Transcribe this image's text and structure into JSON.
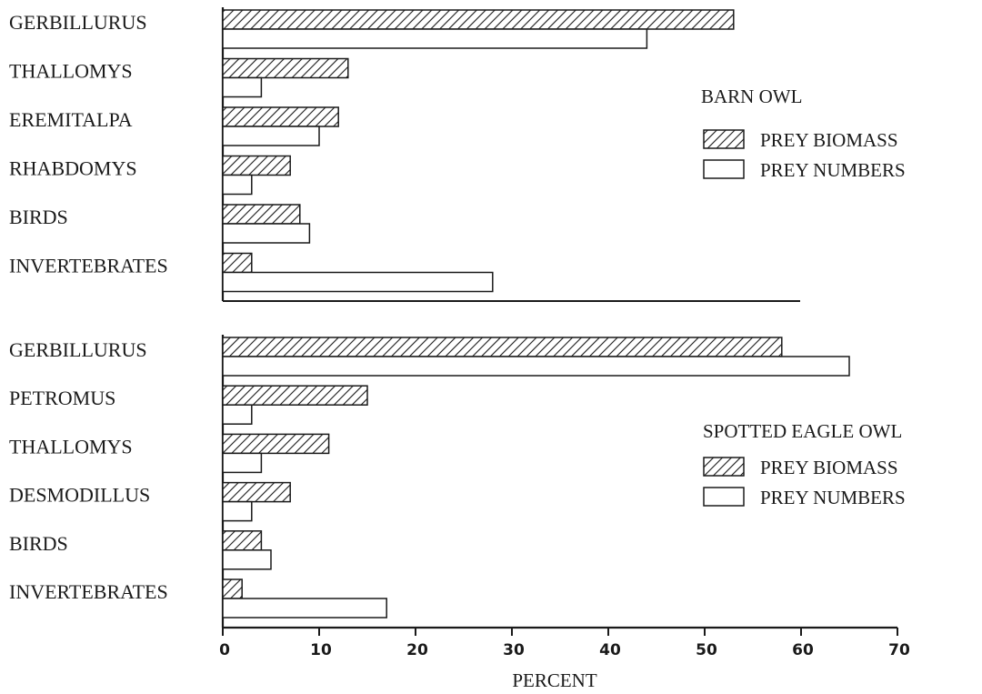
{
  "chart_data": [
    {
      "type": "bar",
      "orientation": "horizontal",
      "legend_title": "BARN OWL",
      "categories": [
        "GERBILLURUS",
        "THALLOMYS",
        "EREMITALPA",
        "RHABDOMYS",
        "BIRDS",
        "INVERTEBRATES"
      ],
      "series": [
        {
          "name": "PREY BIOMASS",
          "pattern": "hatched",
          "values": [
            53,
            13,
            12,
            7,
            8,
            3
          ]
        },
        {
          "name": "PREY NUMBERS",
          "pattern": "open",
          "values": [
            44,
            4,
            10,
            3,
            9,
            28
          ]
        }
      ],
      "xlim": [
        0,
        70
      ]
    },
    {
      "type": "bar",
      "orientation": "horizontal",
      "legend_title": "SPOTTED EAGLE OWL",
      "categories": [
        "GERBILLURUS",
        "PETROMUS",
        "THALLOMYS",
        "DESMODILLUS",
        "BIRDS",
        "INVERTEBRATES"
      ],
      "series": [
        {
          "name": "PREY BIOMASS",
          "pattern": "hatched",
          "values": [
            58,
            15,
            11,
            7,
            4,
            2
          ]
        },
        {
          "name": "PREY NUMBERS",
          "pattern": "open",
          "values": [
            65,
            3,
            4,
            3,
            5,
            17
          ]
        }
      ],
      "xlim": [
        0,
        70
      ]
    }
  ],
  "x_axis": {
    "label": "PERCENT",
    "ticks": [
      0,
      10,
      20,
      30,
      40,
      50,
      60,
      70
    ]
  },
  "colors": {
    "ink": "#1a1a1a",
    "background": "#ffffff"
  }
}
